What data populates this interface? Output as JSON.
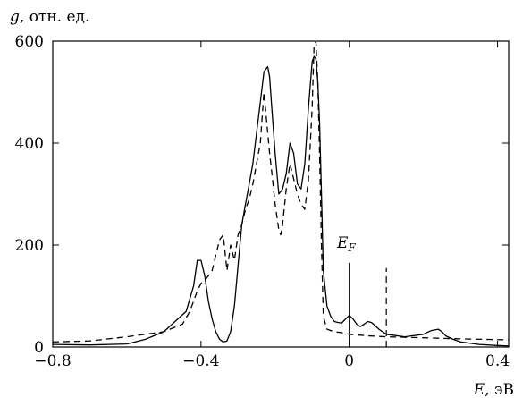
{
  "chart_data": {
    "type": "line",
    "ylabel_symbol": "g",
    "ylabel_unit": ", отн. ед.",
    "xlabel_symbol": "E",
    "xlabel_unit": ", эВ",
    "xlim": [
      -0.8,
      0.43
    ],
    "ylim": [
      0,
      600
    ],
    "xticks": [
      -0.8,
      -0.4,
      0,
      0.4
    ],
    "xtick_labels": [
      "−0.8",
      "−0.4",
      "0",
      "0.4"
    ],
    "yticks": [
      0,
      200,
      400,
      600
    ],
    "ytick_labels": [
      "0",
      "200",
      "400",
      "600"
    ],
    "grid": false,
    "annotations": [
      {
        "symbol": "E",
        "subscript": "F",
        "x": 0.0,
        "marker_top": 165,
        "style": "solid"
      },
      {
        "x": 0.1,
        "marker_top": 155,
        "style": "dashed"
      }
    ],
    "series": [
      {
        "style": "solid",
        "x": [
          -0.8,
          -0.7,
          -0.6,
          -0.55,
          -0.5,
          -0.47,
          -0.44,
          -0.42,
          -0.41,
          -0.4,
          -0.39,
          -0.38,
          -0.37,
          -0.36,
          -0.35,
          -0.34,
          -0.33,
          -0.32,
          -0.31,
          -0.3,
          -0.29,
          -0.28,
          -0.27,
          -0.26,
          -0.25,
          -0.24,
          -0.23,
          -0.22,
          -0.215,
          -0.21,
          -0.2,
          -0.19,
          -0.18,
          -0.17,
          -0.16,
          -0.15,
          -0.14,
          -0.13,
          -0.12,
          -0.11,
          -0.1,
          -0.095,
          -0.09,
          -0.085,
          -0.08,
          -0.075,
          -0.07,
          -0.06,
          -0.05,
          -0.04,
          -0.03,
          -0.02,
          -0.01,
          0.0,
          0.01,
          0.02,
          0.03,
          0.04,
          0.05,
          0.06,
          0.07,
          0.08,
          0.1,
          0.15,
          0.2,
          0.22,
          0.24,
          0.25,
          0.26,
          0.28,
          0.3,
          0.35,
          0.4,
          0.43
        ],
        "values": [
          5,
          4,
          6,
          15,
          30,
          50,
          70,
          120,
          170,
          170,
          140,
          90,
          55,
          30,
          15,
          10,
          12,
          30,
          80,
          160,
          240,
          280,
          320,
          360,
          420,
          480,
          540,
          550,
          530,
          480,
          380,
          300,
          310,
          340,
          400,
          380,
          320,
          310,
          360,
          470,
          560,
          570,
          565,
          520,
          440,
          300,
          150,
          80,
          60,
          50,
          48,
          47,
          55,
          62,
          55,
          45,
          40,
          45,
          50,
          48,
          42,
          35,
          25,
          20,
          25,
          32,
          35,
          30,
          22,
          15,
          10,
          5,
          3,
          2
        ]
      },
      {
        "style": "dashed",
        "x": [
          -0.8,
          -0.7,
          -0.6,
          -0.5,
          -0.45,
          -0.43,
          -0.41,
          -0.4,
          -0.39,
          -0.38,
          -0.37,
          -0.36,
          -0.35,
          -0.34,
          -0.33,
          -0.32,
          -0.31,
          -0.3,
          -0.29,
          -0.28,
          -0.27,
          -0.26,
          -0.25,
          -0.24,
          -0.23,
          -0.22,
          -0.215,
          -0.21,
          -0.2,
          -0.19,
          -0.185,
          -0.18,
          -0.17,
          -0.16,
          -0.15,
          -0.14,
          -0.13,
          -0.12,
          -0.11,
          -0.1,
          -0.095,
          -0.09,
          -0.085,
          -0.08,
          -0.075,
          -0.07,
          -0.06,
          -0.04,
          -0.02,
          0.0,
          0.05,
          0.1,
          0.2,
          0.3,
          0.43
        ],
        "values": [
          10,
          12,
          20,
          30,
          45,
          70,
          110,
          125,
          130,
          140,
          150,
          180,
          210,
          220,
          150,
          200,
          170,
          220,
          240,
          270,
          290,
          320,
          360,
          400,
          500,
          420,
          380,
          350,
          280,
          230,
          220,
          240,
          310,
          360,
          330,
          300,
          280,
          270,
          330,
          470,
          590,
          600,
          520,
          380,
          200,
          60,
          35,
          30,
          28,
          25,
          22,
          20,
          18,
          16,
          14
        ]
      }
    ]
  }
}
